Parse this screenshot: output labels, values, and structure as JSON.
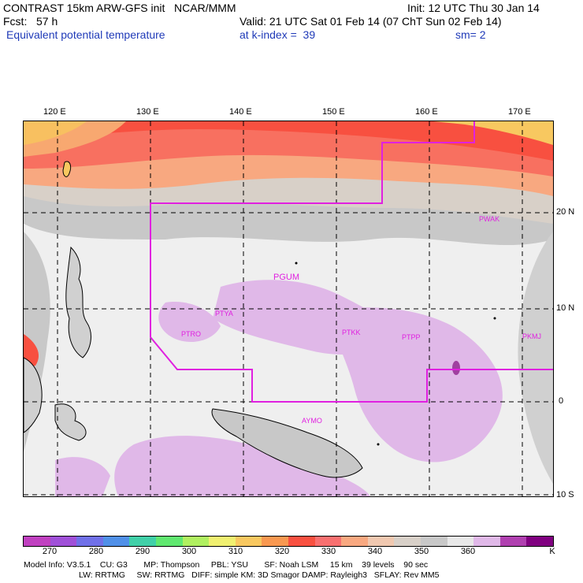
{
  "header": {
    "line1_left": "CONTRAST 15km ARW-GFS init   NCAR/MMM",
    "line1_right": "Init: 12 UTC Thu 30 Jan 14",
    "line2_left": "Fcst:   57 h",
    "line2_right": "Valid: 21 UTC Sat 01 Feb 14 (07 ChT Sun 02 Feb 14)",
    "line3_left": "Equivalent potential temperature",
    "line3_mid": "at k-index =  39",
    "line3_right": "sm= 2"
  },
  "axes": {
    "lon_labels": [
      "120 E",
      "130 E",
      "140 E",
      "150 E",
      "160 E",
      "170 E"
    ],
    "lat_labels": [
      "20 N",
      "10 N",
      "0",
      "10 S"
    ]
  },
  "stations": [
    "PWAK",
    "PGUM",
    "PTYA",
    "PTRO",
    "PTKK",
    "PTPP",
    "PKMJ",
    "AYMO"
  ],
  "legend": {
    "ticks": [
      "270",
      "280",
      "290",
      "300",
      "310",
      "320",
      "330",
      "340",
      "350",
      "360",
      "K"
    ],
    "colors": [
      "#c040c0",
      "#a050d8",
      "#7070e8",
      "#5090e8",
      "#40d0a8",
      "#60e870",
      "#b0f060",
      "#f0f070",
      "#f8c860",
      "#f89850",
      "#f85040",
      "#f87070",
      "#f8a880",
      "#f0c8b0",
      "#d8d0c8",
      "#c8c8c8",
      "#e8e8e8",
      "#e0b8e8",
      "#b040b0",
      "#800080"
    ]
  },
  "model_info": {
    "line1": "Model Info: V3.5.1    CU: G3       MP: Thompson     PBL: YSU       SF: Noah LSM     15 km    39 levels    90 sec",
    "line2": "                        LW: RRTMG     SW: RRTMG   DIFF: simple KM: 3D Smagor DAMP: Rayleigh3   SFLAY: Rev MM5"
  }
}
